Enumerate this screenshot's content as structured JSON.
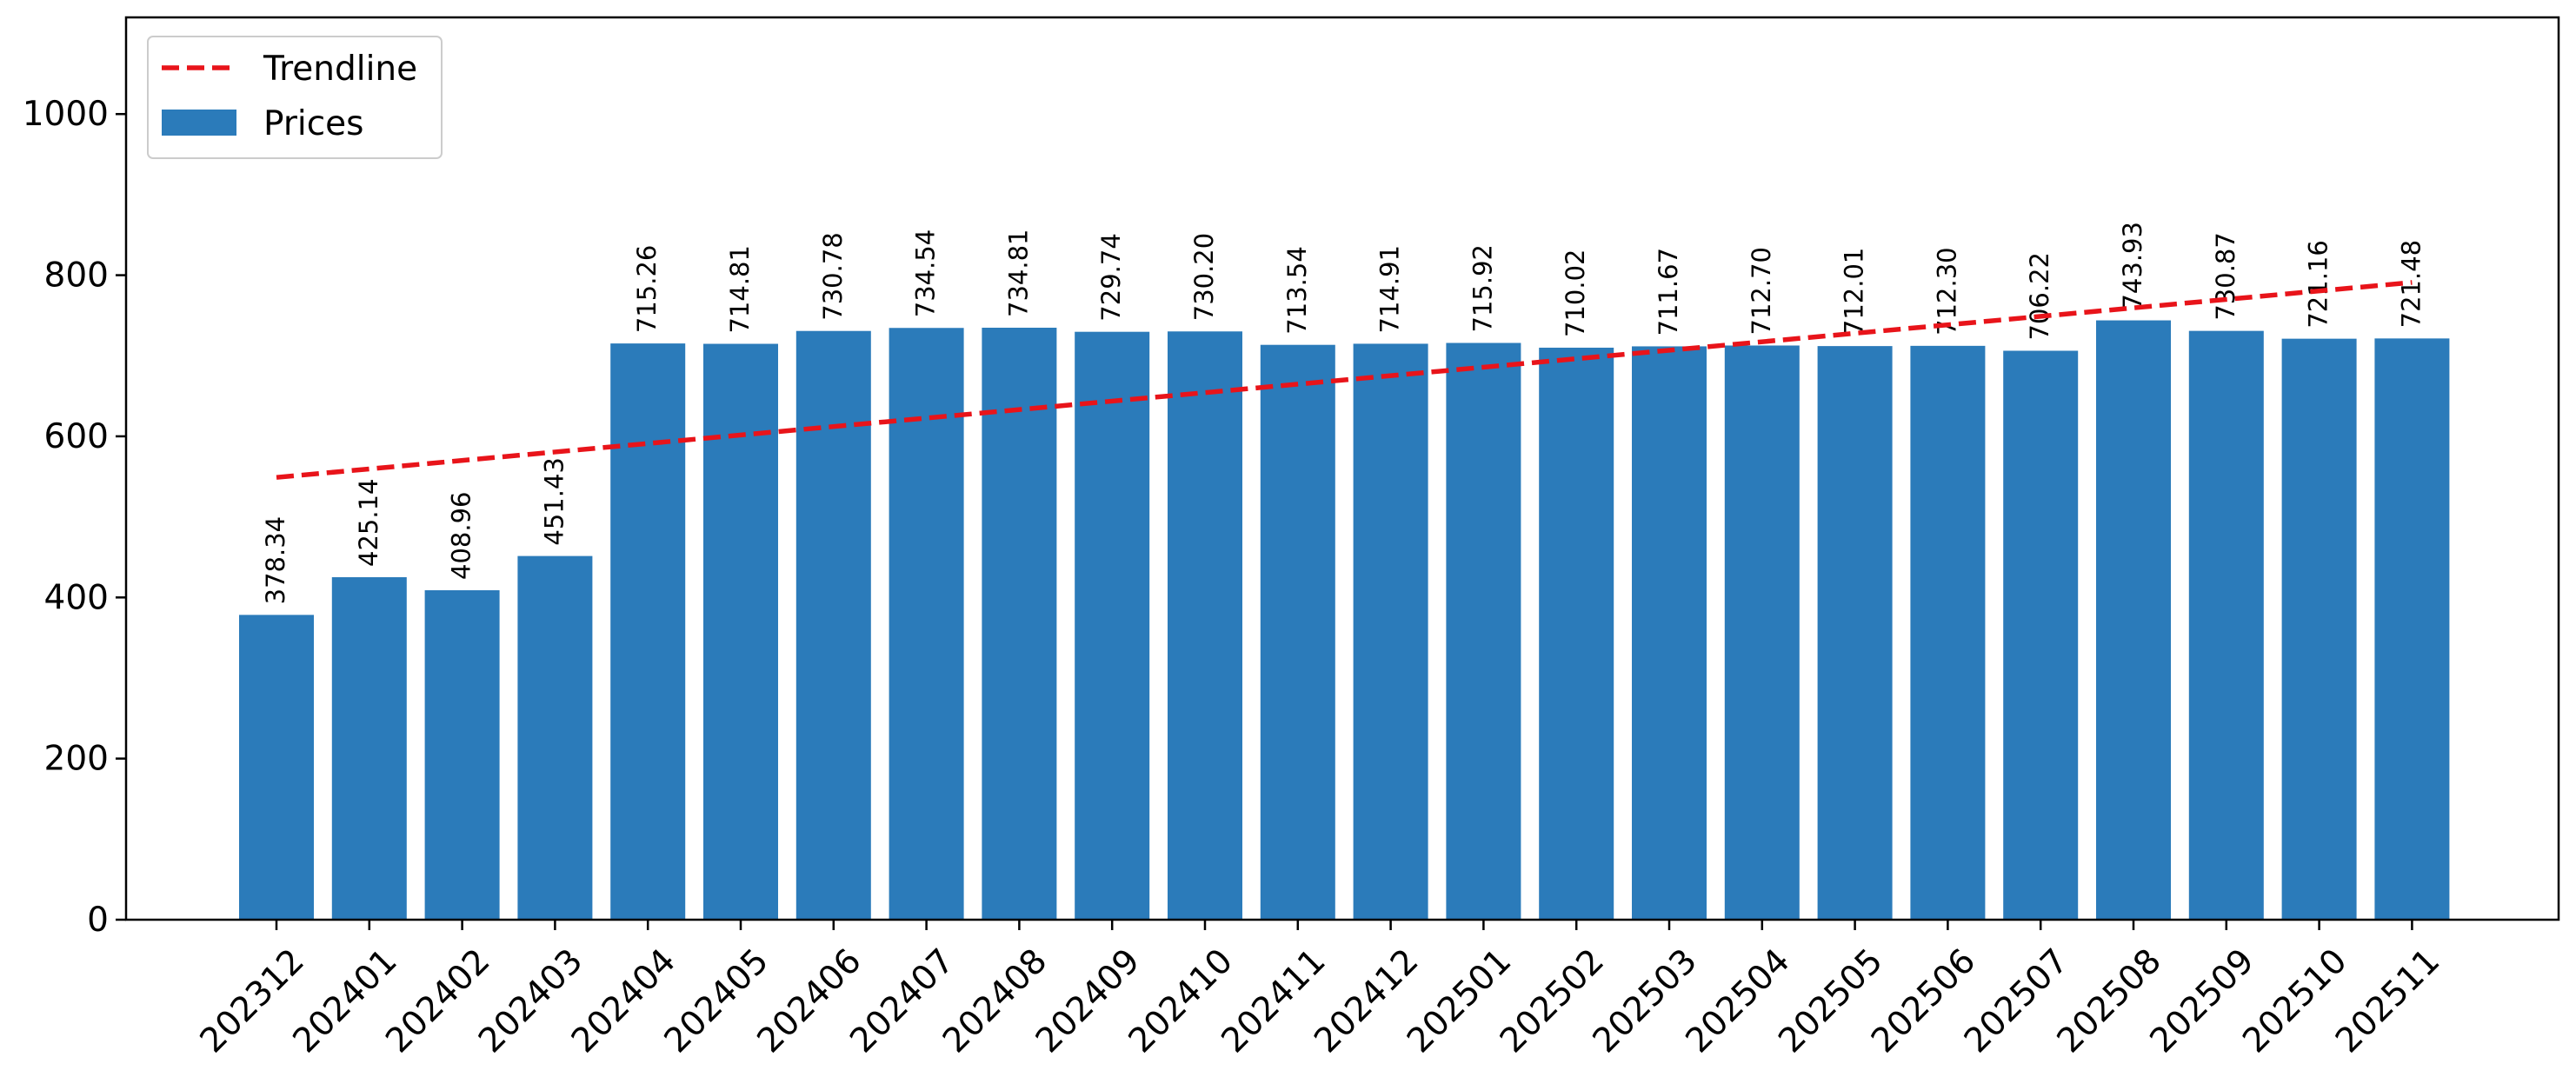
{
  "chart_data": {
    "type": "bar",
    "title": "",
    "xlabel": "",
    "ylabel": "",
    "categories": [
      "202312",
      "202401",
      "202402",
      "202403",
      "202404",
      "202405",
      "202406",
      "202407",
      "202408",
      "202409",
      "202410",
      "202411",
      "202412",
      "202501",
      "202502",
      "202503",
      "202504",
      "202505",
      "202506",
      "202507",
      "202508",
      "202509",
      "202510",
      "202511"
    ],
    "series": [
      {
        "name": "Prices",
        "values": [
          378.34,
          425.14,
          408.96,
          451.43,
          715.26,
          714.81,
          730.78,
          734.54,
          734.81,
          729.74,
          730.2,
          713.54,
          714.91,
          715.92,
          710.02,
          711.67,
          712.7,
          712.01,
          712.3,
          706.22,
          743.93,
          730.87,
          721.16,
          721.48
        ],
        "data_labels": [
          "378.34",
          "425.14",
          "408.96",
          "451.43",
          "715.26",
          "714.81",
          "730.78",
          "734.54",
          "734.81",
          "729.74",
          "730.20",
          "713.54",
          "714.91",
          "715.92",
          "710.02",
          "711.67",
          "712.70",
          "712.01",
          "712.30",
          "706.22",
          "743.93",
          "730.87",
          "721.16",
          "721.48"
        ],
        "color": "#2b7bba"
      }
    ],
    "trendline": {
      "name": "Trendline",
      "style": "dashed",
      "color": "#e8141a",
      "start_value": 549,
      "end_value": 791
    },
    "ylim": [
      0,
      1120
    ],
    "yticks": [
      0,
      200,
      400,
      600,
      800,
      1000
    ],
    "ytick_labels": [
      "0",
      "200",
      "400",
      "600",
      "800",
      "1000"
    ],
    "grid": false,
    "legend": {
      "position": "top-left",
      "entries": [
        {
          "label": "Trendline",
          "kind": "line"
        },
        {
          "label": "Prices",
          "kind": "patch"
        }
      ]
    }
  }
}
